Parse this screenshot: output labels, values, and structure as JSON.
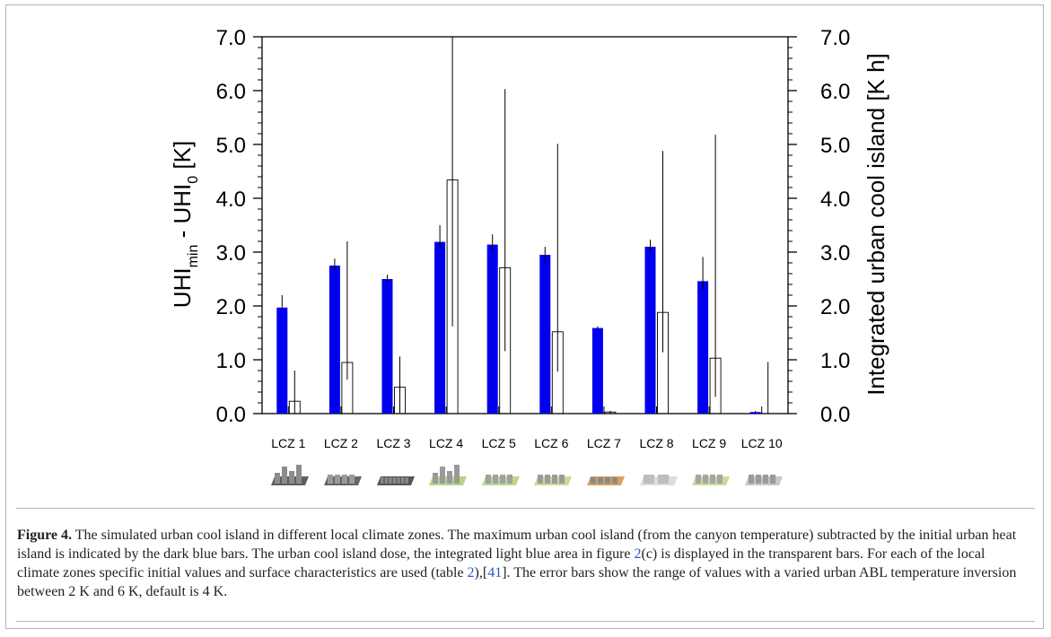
{
  "chart_data": {
    "type": "bar",
    "categories": [
      "LCZ 1",
      "LCZ 2",
      "LCZ 3",
      "LCZ 4",
      "LCZ 5",
      "LCZ 6",
      "LCZ 7",
      "LCZ 8",
      "LCZ 9",
      "LCZ 10"
    ],
    "series": [
      {
        "axis": "left",
        "color": "#0000ee",
        "values": [
          1.97,
          2.75,
          2.5,
          3.19,
          3.14,
          2.95,
          1.59,
          3.1,
          2.46,
          0.03
        ],
        "error_low": [
          1.97,
          2.65,
          2.43,
          3.07,
          3.0,
          2.8,
          1.57,
          2.97,
          2.3,
          0.01
        ],
        "error_high": [
          2.2,
          2.88,
          2.58,
          3.5,
          3.33,
          3.1,
          1.62,
          3.23,
          2.91,
          0.05
        ]
      },
      {
        "axis": "right",
        "color": "transparent",
        "values": [
          0.23,
          0.95,
          0.49,
          4.34,
          2.71,
          1.52,
          0.03,
          1.88,
          1.03,
          0.0
        ],
        "error_low": [
          0.0,
          0.63,
          0.0,
          1.62,
          1.16,
          0.78,
          0.0,
          1.14,
          0.31,
          0.0
        ],
        "error_high": [
          0.8,
          3.2,
          1.06,
          7.0,
          6.03,
          5.01,
          0.05,
          4.88,
          5.18,
          0.96
        ]
      }
    ],
    "ylim": [
      0,
      7.0
    ],
    "y2lim": [
      0,
      7.0
    ],
    "yticks": [
      "0.0",
      "1.0",
      "2.0",
      "3.0",
      "4.0",
      "5.0",
      "6.0",
      "7.0"
    ],
    "ylabel": "UHI",
    "ylabel_sub_min": "min",
    "ylabel_mid": " - UHI",
    "ylabel_sub_0": "0",
    "ylabel_unit": " [K]",
    "y2label": "Integrated urban cool island [K h]",
    "grid": false
  },
  "zone_icons": [
    "dense high-rise",
    "dense mid-rise",
    "dense low-rise",
    "open high-rise",
    "open mid-rise",
    "open low-rise",
    "lightweight low-rise",
    "large low-rise",
    "sparsely built",
    "heavy industry"
  ],
  "caption": {
    "label": "Figure 4.",
    "part1": " The simulated urban cool island in different local climate zones. The maximum urban cool island (from the canyon temperature) subtracted by the initial urban heat island is indicated by the dark blue bars. The urban cool island dose, the integrated light blue area in figure ",
    "ref1": "2",
    "part2": "(c) is displayed in the transparent bars. For each of the local climate zones specific initial values and surface characteristics are used (table ",
    "ref2": "2",
    "part3": "),[",
    "ref3": "41",
    "part4": "]. The error bars show the range of values with a varied urban ABL temperature inversion between 2 K and 6 K, default is 4 K."
  }
}
